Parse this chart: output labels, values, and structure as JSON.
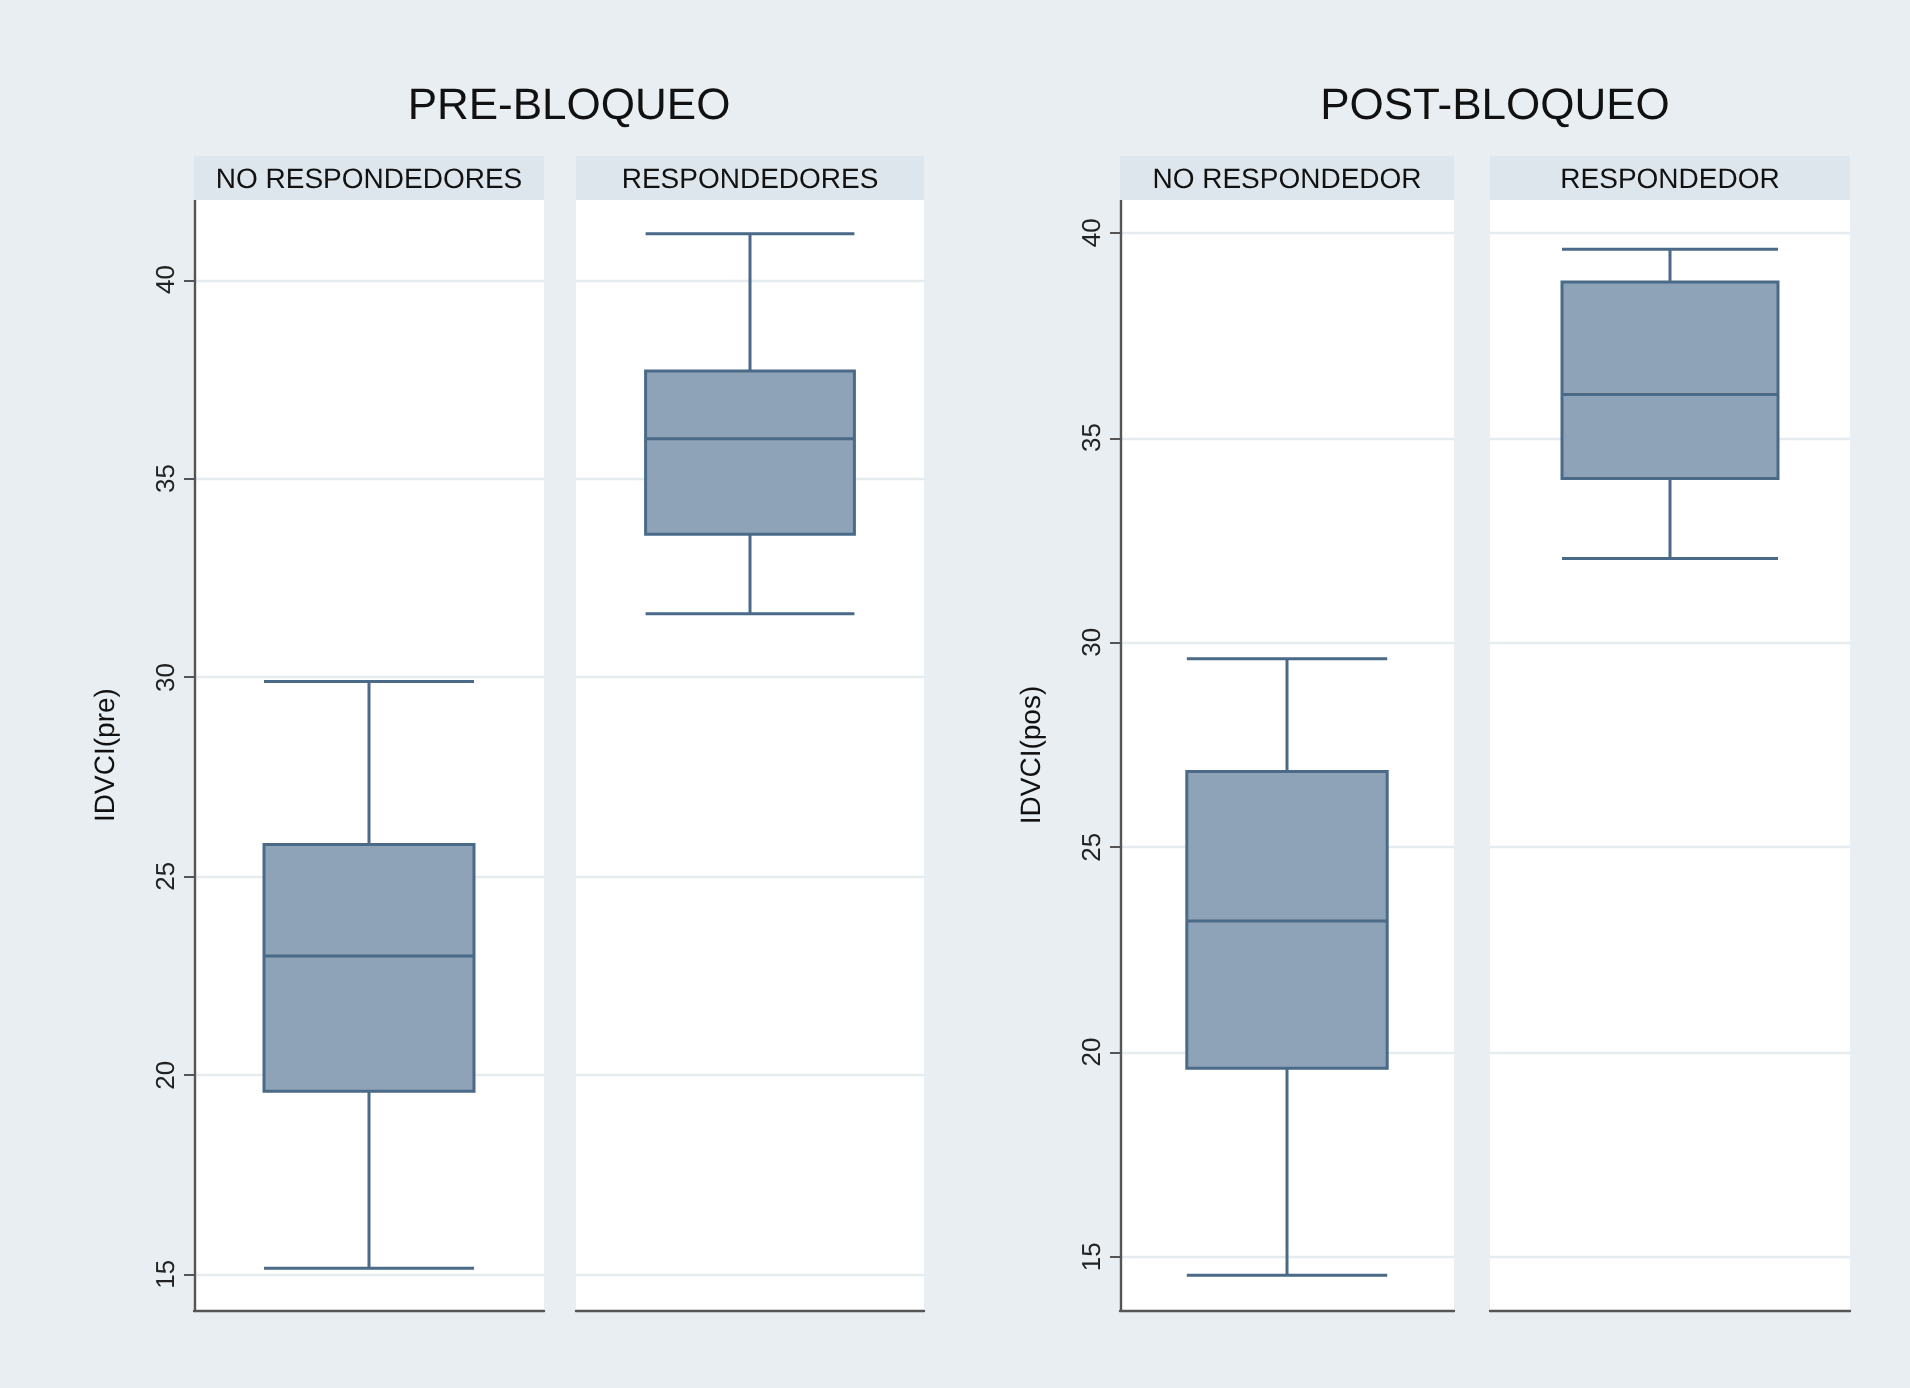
{
  "chart_data": [
    {
      "type": "box",
      "title": "PRE-BLOQUEO",
      "ylabel": "IDVCI(pre)",
      "categories": [
        "NO RESPONDEDORES",
        "RESPONDEDORES"
      ],
      "color": "#8ea3b8",
      "boxes": [
        {
          "low": 15.15,
          "q1": 19.6,
          "median": 23.0,
          "q3": 25.8,
          "high": 29.9
        },
        {
          "low": 31.6,
          "q1": 33.6,
          "median": 36.0,
          "q3": 37.7,
          "high": 41.15
        }
      ],
      "ylim": [
        14.1,
        42
      ],
      "yticks": [
        15,
        20,
        25,
        30,
        35,
        40
      ],
      "grid": "y"
    },
    {
      "type": "box",
      "title": "POST-BLOQUEO",
      "ylabel": "IDVCI(pos)",
      "categories": [
        "NO RESPONDEDOR",
        "RESPONDEDOR"
      ],
      "color": "#8ea3b8",
      "boxes": [
        {
          "low": 14.55,
          "q1": 19.6,
          "median": 23.2,
          "q3": 26.85,
          "high": 29.6
        },
        {
          "low": 32.05,
          "q1": 34.0,
          "median": 36.05,
          "q3": 38.8,
          "high": 39.6
        }
      ],
      "ylim": [
        13.7,
        40.8
      ],
      "yticks": [
        15,
        20,
        25,
        30,
        35,
        40
      ],
      "grid": "y"
    }
  ]
}
